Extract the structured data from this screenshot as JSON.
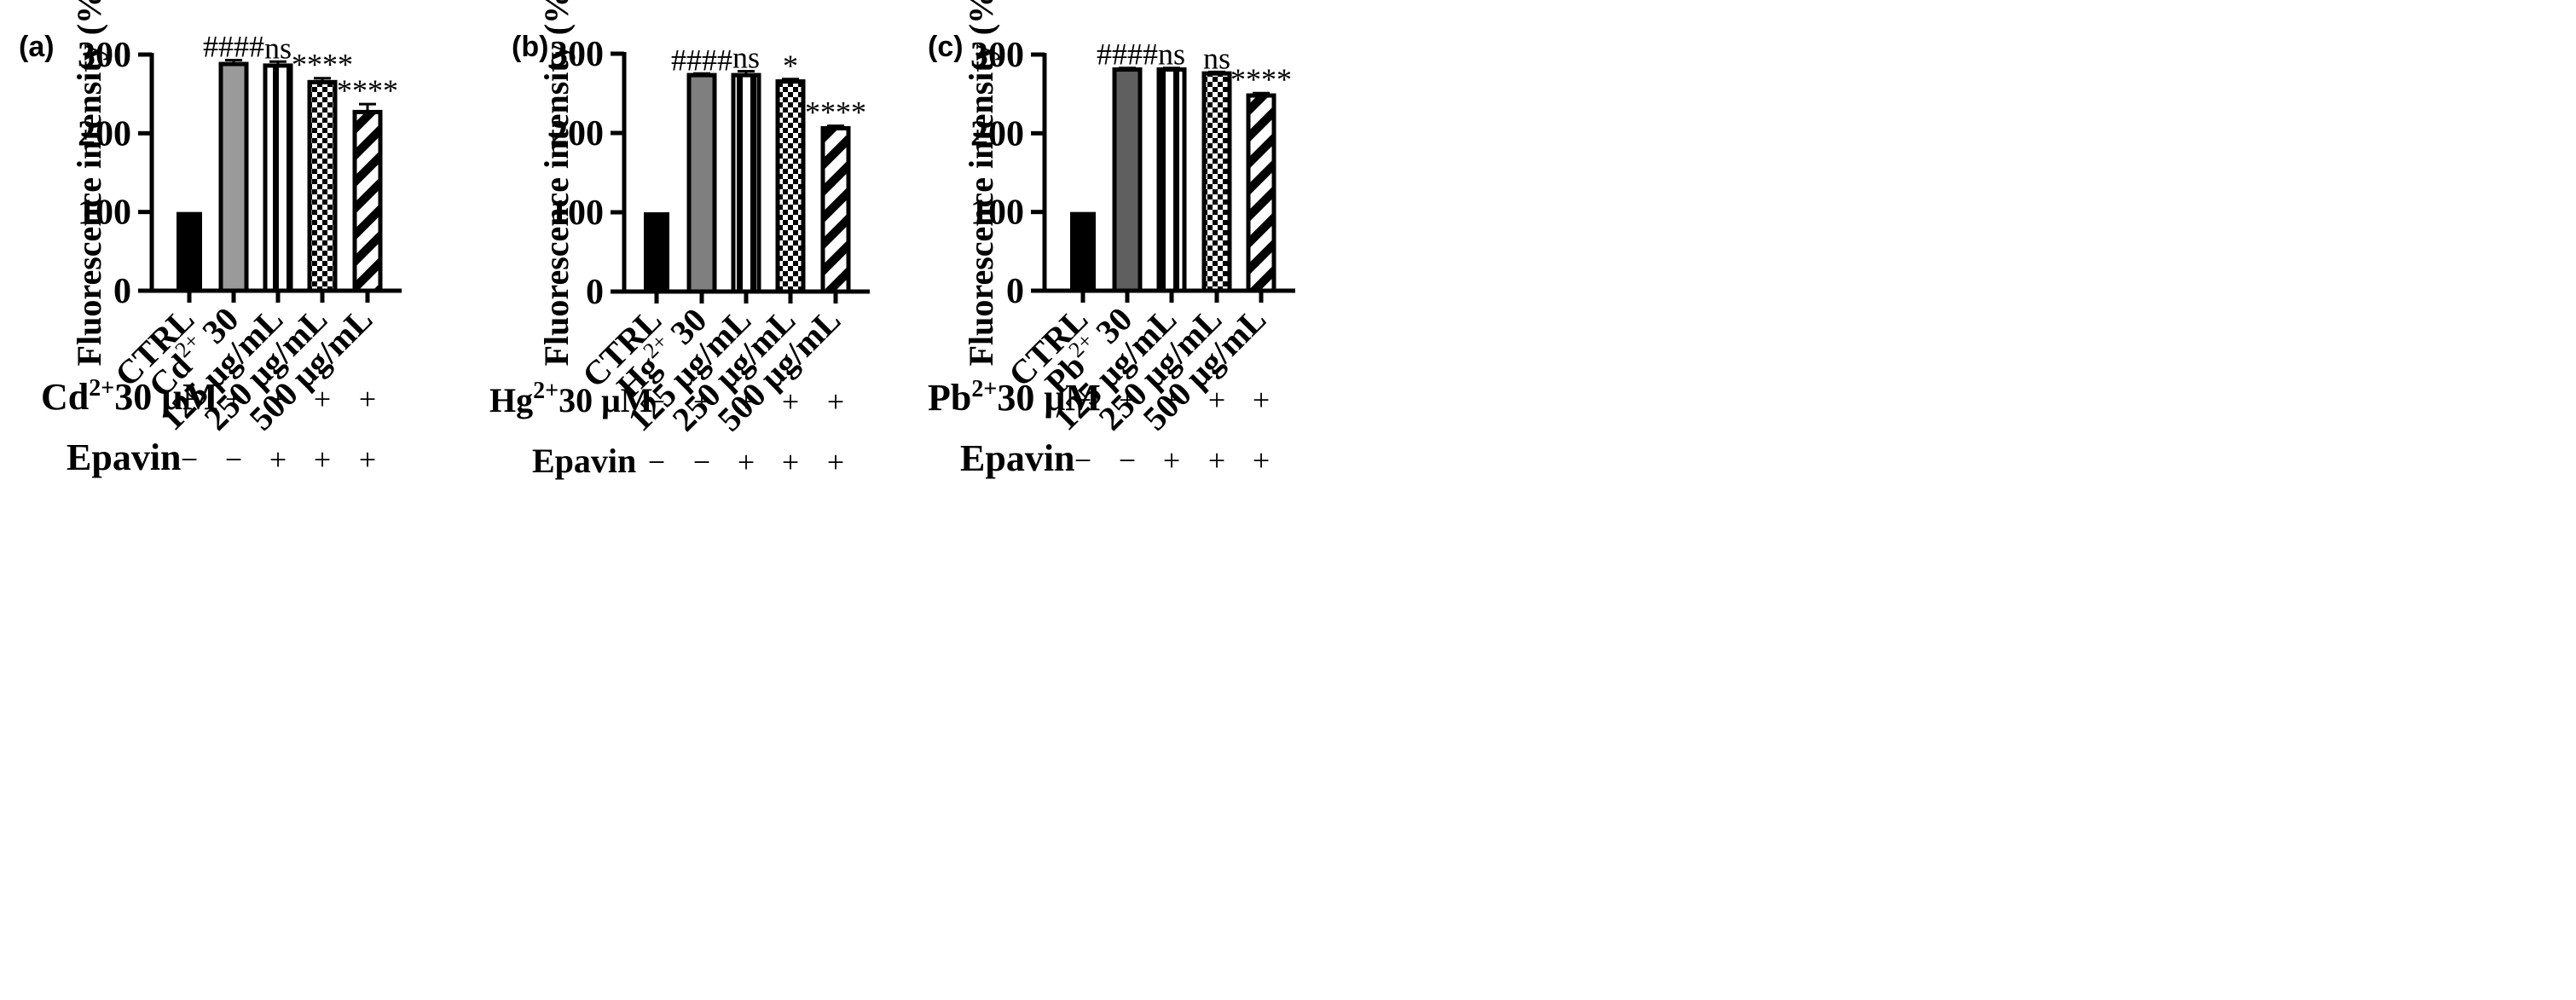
{
  "chart_data": [
    {
      "panel_label": "(a)",
      "type": "bar",
      "ylabel": "Fluorescence intensity (%)",
      "ylim": [
        0,
        300
      ],
      "yticks": [
        "0",
        "100",
        "200",
        "300"
      ],
      "categories": [
        {
          "base": "CTRL",
          "sup": ""
        },
        {
          "base": "Cd",
          "sup": "2+",
          "post": " 30"
        },
        {
          "base": "125 μg/mL",
          "sup": ""
        },
        {
          "base": "250 μg/mL",
          "sup": ""
        },
        {
          "base": "500 μg/mL",
          "sup": ""
        }
      ],
      "values": [
        100,
        288,
        286,
        265,
        227
      ],
      "errors": [
        0,
        5,
        5,
        5,
        10
      ],
      "annotations": [
        "",
        "####",
        "ns",
        "****",
        "****"
      ],
      "fills": [
        "solid-black",
        "solid-gray",
        "vertical-stripes",
        "checker",
        "diagonal-stripes"
      ],
      "bar_gray": "#9a9a9a",
      "treatment_rows": [
        {
          "label_base": "Cd",
          "label_sup": "2+",
          "label_post": "30 μM",
          "marks": [
            "−",
            "+",
            "+",
            "+",
            "+"
          ]
        },
        {
          "label_base": "Epavin",
          "label_sup": "",
          "label_post": "",
          "marks": [
            "−",
            "−",
            "+",
            "+",
            "+"
          ]
        }
      ]
    },
    {
      "panel_label": "(b)",
      "type": "bar",
      "ylabel": "Fluorescence intensity (%)",
      "ylim": [
        0,
        300
      ],
      "yticks": [
        "0",
        "100",
        "200",
        "300"
      ],
      "categories": [
        {
          "base": "CTRL",
          "sup": ""
        },
        {
          "base": "Hg",
          "sup": "2+",
          "post": " 30"
        },
        {
          "base": "125 μg/mL",
          "sup": ""
        },
        {
          "base": "250 μg/mL",
          "sup": ""
        },
        {
          "base": "500 μg/mL",
          "sup": ""
        }
      ],
      "values": [
        100,
        273,
        273,
        265,
        206
      ],
      "errors": [
        0,
        2,
        5,
        3,
        3
      ],
      "annotations": [
        "",
        "####",
        "ns",
        "*",
        "****"
      ],
      "fills": [
        "solid-black",
        "solid-gray",
        "vertical-stripes",
        "checker",
        "diagonal-stripes"
      ],
      "bar_gray": "#7f7f7f",
      "treatment_rows": [
        {
          "label_base": "Hg",
          "label_sup": "2+",
          "label_post": "30 μM",
          "marks": [
            "−",
            "+",
            "+",
            "+",
            "+"
          ]
        },
        {
          "label_base": "Epavin",
          "label_sup": "",
          "label_post": "",
          "marks": [
            "−",
            "−",
            "+",
            "+",
            "+"
          ]
        }
      ]
    },
    {
      "panel_label": "(c)",
      "type": "bar",
      "ylabel": "Fluorescence intensity (%)",
      "ylim": [
        0,
        300
      ],
      "yticks": [
        "0",
        "100",
        "200",
        "300"
      ],
      "categories": [
        {
          "base": "CTRL",
          "sup": ""
        },
        {
          "base": "Pb",
          "sup": "2+",
          "post": " 30"
        },
        {
          "base": "125 μg/mL",
          "sup": ""
        },
        {
          "base": "250 μg/mL",
          "sup": ""
        },
        {
          "base": "500 μg/mL",
          "sup": ""
        }
      ],
      "values": [
        100,
        281,
        281,
        276,
        248
      ],
      "errors": [
        0,
        2,
        2,
        2,
        3
      ],
      "annotations": [
        "",
        "####",
        "ns",
        "ns",
        "****"
      ],
      "fills": [
        "solid-black",
        "solid-gray",
        "vertical-stripes",
        "checker",
        "diagonal-stripes"
      ],
      "bar_gray": "#5f5f5f",
      "treatment_rows": [
        {
          "label_base": "Pb",
          "label_sup": "2+",
          "label_post": "30 μM",
          "marks": [
            "−",
            "+",
            "+",
            "+",
            "+"
          ]
        },
        {
          "label_base": "Epavin",
          "label_sup": "",
          "label_post": "",
          "marks": [
            "−",
            "−",
            "+",
            "+",
            "+"
          ]
        }
      ]
    }
  ]
}
